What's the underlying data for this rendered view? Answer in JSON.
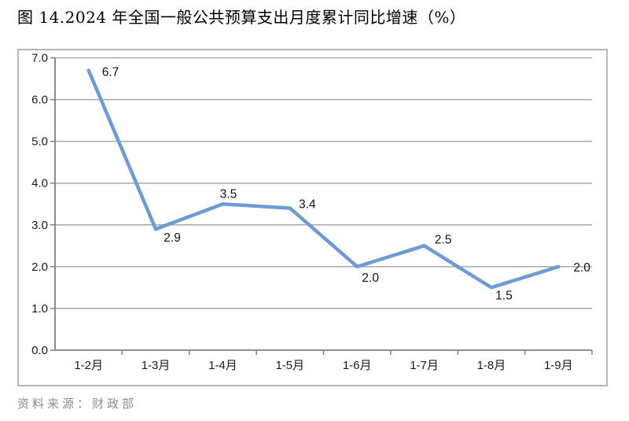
{
  "page": {
    "title": "图 14.2024 年全国一般公共预算支出月度累计同比增速（%）",
    "source_note": "资料来源：财政部"
  },
  "chart_data": {
    "type": "line",
    "title": "图 14.2024 年全国一般公共预算支出月度累计同比增速（%）",
    "categories": [
      "1-2月",
      "1-3月",
      "1-4月",
      "1-5月",
      "1-6月",
      "1-7月",
      "1-8月",
      "1-9月"
    ],
    "values": [
      6.7,
      2.9,
      3.5,
      3.4,
      2.0,
      2.5,
      1.5,
      2.0
    ],
    "data_labels": [
      "6.7",
      "2.9",
      "3.5",
      "3.4",
      "2.0",
      "2.5",
      "1.5",
      "2.0"
    ],
    "ytick_labels": [
      "0.0",
      "1.0",
      "2.0",
      "3.0",
      "4.0",
      "5.0",
      "6.0",
      "7.0"
    ],
    "ylim": [
      0,
      7
    ],
    "ystep": 1,
    "xlabel": "",
    "ylabel": "",
    "grid": "horizontal",
    "legend": "none",
    "line_color": "#6d9bd3",
    "gridline_color": "#a8a8a8",
    "axis_color": "#7f7f7f",
    "frame_border_color": "#b5b5b5",
    "source": "资料来源：财政部"
  }
}
